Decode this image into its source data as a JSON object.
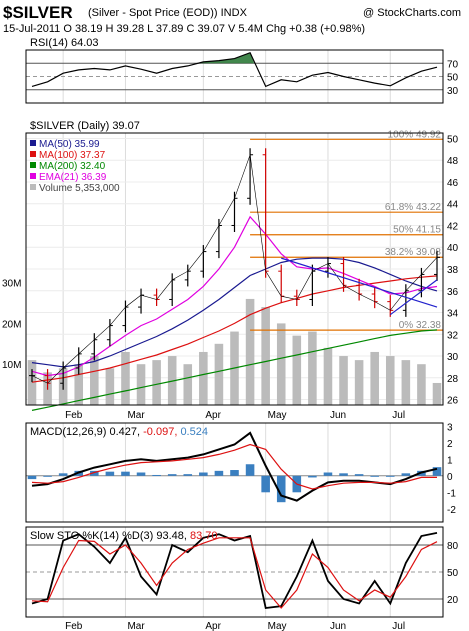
{
  "header": {
    "symbol": "$SILVER",
    "description": "(Silver - Spot Price (EOD))  INDX",
    "credit": "@ StockCharts.com",
    "quote_line": "15-Jul-2011   O 38.19  H 39.28  L 37.89  C 39.07  V 5.4M  Chg +0.38 (+0.98%)"
  },
  "colors": {
    "price": "#000000",
    "up_bar": "#000000",
    "down_bar": "#d00000",
    "ma50": "#1a1a90",
    "ma100": "#dd1111",
    "ma200": "#008800",
    "ema21": "#e000e0",
    "volume": "#bbbbbb",
    "fib": "#e07000",
    "trend": "#2222cc",
    "rsi_fill": "#2d7a3a",
    "macd_hist": "#3a7fc0",
    "signal": "#dd1111",
    "stoch_k": "#000000",
    "stoch_d": "#dd1111"
  },
  "chart_data": [
    {
      "type": "line",
      "panel": "rsi",
      "label": "RSI(14) 64.03",
      "ylim": [
        10,
        90
      ],
      "y_ticks": [
        30,
        50,
        70
      ],
      "reference_lines": [
        30,
        50,
        70
      ],
      "x": [
        "2011-01-17",
        "2011-01-24",
        "2011-01-31",
        "2011-02-07",
        "2011-02-14",
        "2011-02-21",
        "2011-02-28",
        "2011-03-07",
        "2011-03-14",
        "2011-03-21",
        "2011-03-28",
        "2011-04-04",
        "2011-04-11",
        "2011-04-18",
        "2011-04-25",
        "2011-05-02",
        "2011-05-09",
        "2011-05-16",
        "2011-05-23",
        "2011-05-30",
        "2011-06-06",
        "2011-06-13",
        "2011-06-20",
        "2011-06-27",
        "2011-07-04",
        "2011-07-11",
        "2011-07-15"
      ],
      "values": [
        35,
        42,
        55,
        60,
        62,
        60,
        66,
        61,
        55,
        62,
        66,
        72,
        74,
        77,
        86,
        35,
        45,
        42,
        52,
        56,
        50,
        45,
        40,
        36,
        48,
        58,
        64.03
      ]
    },
    {
      "type": "line",
      "panel": "price",
      "title": "$SILVER (Daily) 39.07",
      "ylim": [
        25.5,
        50.5
      ],
      "y_ticks": [
        26,
        28,
        30,
        32,
        34,
        36,
        38,
        40,
        42,
        44,
        46,
        48,
        50
      ],
      "x_ticks": [
        "Feb",
        "Mar",
        "Apr",
        "May",
        "Jun",
        "Jul"
      ],
      "volume_ticks": [
        "10M",
        "20M",
        "30M"
      ],
      "legend": [
        {
          "name": "MA(50) 35.99",
          "color_key": "ma50"
        },
        {
          "name": "MA(100) 37.37",
          "color_key": "ma100"
        },
        {
          "name": "MA(200) 32.40",
          "color_key": "ma200"
        },
        {
          "name": "EMA(21) 36.39",
          "color_key": "ema21"
        },
        {
          "name": "Volume 5,353,000",
          "color_key": "volume"
        }
      ],
      "fib_levels": [
        {
          "label": "100% 49.92",
          "value": 49.92
        },
        {
          "label": "61.8% 43.22",
          "value": 43.22
        },
        {
          "label": "50% 41.15",
          "value": 41.15
        },
        {
          "label": "38.2% 39.08",
          "value": 39.08
        },
        {
          "label": "0% 32.38",
          "value": 32.38
        }
      ],
      "x": [
        "2011-01-17",
        "2011-01-24",
        "2011-01-31",
        "2011-02-07",
        "2011-02-14",
        "2011-02-21",
        "2011-02-28",
        "2011-03-07",
        "2011-03-14",
        "2011-03-21",
        "2011-03-28",
        "2011-04-04",
        "2011-04-11",
        "2011-04-18",
        "2011-04-25",
        "2011-05-02",
        "2011-05-09",
        "2011-05-16",
        "2011-05-23",
        "2011-05-30",
        "2011-06-06",
        "2011-06-13",
        "2011-06-20",
        "2011-06-27",
        "2011-07-04",
        "2011-07-11",
        "2011-07-15"
      ],
      "series": [
        {
          "name": "$SILVER",
          "color_key": "price",
          "values": [
            28.2,
            27.5,
            28.9,
            30.2,
            31.5,
            32.8,
            34.5,
            35.6,
            35.2,
            37.0,
            37.8,
            39.6,
            42.0,
            44.5,
            48.5,
            37.8,
            35.5,
            35.2,
            37.8,
            38.5,
            36.5,
            35.7,
            35.0,
            34.2,
            36.0,
            37.5,
            39.07
          ]
        },
        {
          "name": "MA(50)",
          "color_key": "ma50",
          "values": [
            29.4,
            29.2,
            29.0,
            29.2,
            29.5,
            30.0,
            30.6,
            31.2,
            31.8,
            32.5,
            33.3,
            34.2,
            35.2,
            36.3,
            37.4,
            38.0,
            38.6,
            38.9,
            39.0,
            39.0,
            38.9,
            38.6,
            38.1,
            37.5,
            36.9,
            36.4,
            35.99
          ]
        },
        {
          "name": "MA(100)",
          "color_key": "ma100",
          "values": [
            27.6,
            27.8,
            28.0,
            28.3,
            28.6,
            28.9,
            29.3,
            29.7,
            30.1,
            30.6,
            31.1,
            31.7,
            32.3,
            33.0,
            33.8,
            34.4,
            34.9,
            35.3,
            35.7,
            36.0,
            36.3,
            36.5,
            36.7,
            36.9,
            37.1,
            37.25,
            37.37
          ]
        },
        {
          "name": "MA(200)",
          "color_key": "ma200",
          "values": [
            25.0,
            25.3,
            25.6,
            25.9,
            26.2,
            26.5,
            26.8,
            27.1,
            27.4,
            27.7,
            28.0,
            28.3,
            28.6,
            28.9,
            29.2,
            29.5,
            29.8,
            30.1,
            30.4,
            30.7,
            31.0,
            31.3,
            31.6,
            31.9,
            32.1,
            32.3,
            32.4
          ]
        },
        {
          "name": "EMA(21)",
          "color_key": "ema21",
          "values": [
            28.6,
            28.2,
            28.4,
            29.0,
            29.9,
            30.9,
            31.9,
            32.8,
            33.4,
            34.3,
            35.2,
            36.4,
            38.0,
            40.0,
            42.8,
            41.2,
            39.4,
            38.2,
            38.0,
            38.1,
            37.6,
            37.0,
            36.4,
            35.7,
            35.8,
            36.2,
            36.39
          ]
        }
      ],
      "volume": [
        11,
        8,
        9,
        10,
        12,
        9,
        13,
        10,
        11,
        12,
        10,
        13,
        15,
        18,
        26,
        24,
        20,
        17,
        18,
        14,
        12,
        11,
        13,
        12,
        11,
        10,
        5.4
      ]
    },
    {
      "type": "line",
      "panel": "macd",
      "title": "MACD(12,26,9)",
      "values_label": [
        "0.427",
        "-0.097",
        "0.524"
      ],
      "ylim": [
        -2.8,
        3.2
      ],
      "y_ticks": [
        -2,
        -1,
        0,
        1,
        2,
        3
      ],
      "x": [
        "2011-01-17",
        "2011-01-24",
        "2011-01-31",
        "2011-02-07",
        "2011-02-14",
        "2011-02-21",
        "2011-02-28",
        "2011-03-07",
        "2011-03-14",
        "2011-03-21",
        "2011-03-28",
        "2011-04-04",
        "2011-04-11",
        "2011-04-18",
        "2011-04-25",
        "2011-05-02",
        "2011-05-09",
        "2011-05-16",
        "2011-05-23",
        "2011-05-30",
        "2011-06-06",
        "2011-06-13",
        "2011-06-20",
        "2011-06-27",
        "2011-07-04",
        "2011-07-11",
        "2011-07-15"
      ],
      "series": [
        {
          "name": "MACD",
          "color_key": "price",
          "values": [
            -0.6,
            -0.5,
            -0.2,
            0.2,
            0.5,
            0.7,
            0.9,
            1.0,
            0.9,
            1.0,
            1.1,
            1.3,
            1.6,
            1.9,
            2.6,
            0.6,
            -1.2,
            -1.5,
            -0.9,
            -0.4,
            -0.3,
            -0.3,
            -0.4,
            -0.5,
            -0.2,
            0.2,
            0.427
          ]
        },
        {
          "name": "Signal",
          "color_key": "signal",
          "values": [
            -0.4,
            -0.45,
            -0.35,
            -0.1,
            0.2,
            0.45,
            0.65,
            0.8,
            0.85,
            0.9,
            1.0,
            1.1,
            1.3,
            1.55,
            1.9,
            1.6,
            0.4,
            -0.5,
            -0.8,
            -0.6,
            -0.45,
            -0.4,
            -0.4,
            -0.45,
            -0.35,
            -0.1,
            -0.097
          ]
        },
        {
          "name": "Histogram",
          "color_key": "macd_hist",
          "values": [
            -0.2,
            -0.05,
            0.15,
            0.3,
            0.3,
            0.25,
            0.25,
            0.2,
            0.05,
            0.1,
            0.1,
            0.2,
            0.3,
            0.35,
            0.7,
            -1.0,
            -1.6,
            -1.0,
            -0.1,
            0.2,
            0.15,
            0.1,
            0.0,
            -0.05,
            0.15,
            0.3,
            0.524
          ]
        }
      ]
    },
    {
      "type": "line",
      "panel": "stochastic",
      "title": "Slow STO %K(14) %D(3)",
      "values_label": [
        "93.48",
        "83.70"
      ],
      "ylim": [
        0,
        100
      ],
      "y_ticks": [
        20,
        50,
        80
      ],
      "reference_lines": [
        20,
        50,
        80
      ],
      "x_ticks": [
        "Feb",
        "Mar",
        "Apr",
        "May",
        "Jun",
        "Jul"
      ],
      "x": [
        "2011-01-17",
        "2011-01-24",
        "2011-01-31",
        "2011-02-07",
        "2011-02-14",
        "2011-02-21",
        "2011-02-28",
        "2011-03-07",
        "2011-03-14",
        "2011-03-21",
        "2011-03-28",
        "2011-04-04",
        "2011-04-11",
        "2011-04-18",
        "2011-04-25",
        "2011-05-02",
        "2011-05-09",
        "2011-05-16",
        "2011-05-23",
        "2011-05-30",
        "2011-06-06",
        "2011-06-13",
        "2011-06-20",
        "2011-06-27",
        "2011-07-04",
        "2011-07-11",
        "2011-07-15"
      ],
      "series": [
        {
          "name": "%K",
          "color_key": "stoch_k",
          "values": [
            15,
            20,
            85,
            92,
            78,
            60,
            88,
            45,
            25,
            80,
            72,
            88,
            92,
            85,
            90,
            10,
            12,
            45,
            85,
            40,
            20,
            15,
            40,
            15,
            60,
            90,
            93.48
          ]
        },
        {
          "name": "%D",
          "color_key": "stoch_d",
          "values": [
            18,
            17,
            55,
            85,
            84,
            70,
            80,
            60,
            35,
            60,
            75,
            82,
            88,
            88,
            88,
            30,
            10,
            30,
            70,
            55,
            30,
            18,
            30,
            22,
            45,
            75,
            83.7
          ]
        }
      ]
    }
  ]
}
